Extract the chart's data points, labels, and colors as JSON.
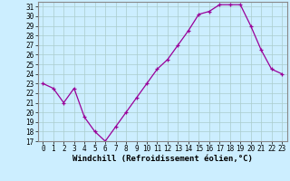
{
  "x": [
    0,
    1,
    2,
    3,
    4,
    5,
    6,
    7,
    8,
    9,
    10,
    11,
    12,
    13,
    14,
    15,
    16,
    17,
    18,
    19,
    20,
    21,
    22,
    23
  ],
  "y": [
    23.0,
    22.5,
    21.0,
    22.5,
    19.5,
    18.0,
    17.0,
    18.5,
    20.0,
    21.5,
    23.0,
    24.5,
    25.5,
    27.0,
    28.5,
    30.2,
    30.5,
    31.2,
    31.2,
    31.2,
    29.0,
    26.5,
    24.5,
    24.0
  ],
  "ylim": [
    17,
    31.5
  ],
  "yticks": [
    17,
    18,
    19,
    20,
    21,
    22,
    23,
    24,
    25,
    26,
    27,
    28,
    29,
    30,
    31
  ],
  "xticks": [
    0,
    1,
    2,
    3,
    4,
    5,
    6,
    7,
    8,
    9,
    10,
    11,
    12,
    13,
    14,
    15,
    16,
    17,
    18,
    19,
    20,
    21,
    22,
    23
  ],
  "xlabel": "Windchill (Refroidissement éolien,°C)",
  "line_color": "#990099",
  "marker": "+",
  "bg_color": "#cceeff",
  "grid_color": "#aacccc",
  "tick_fontsize": 5.5,
  "xlabel_fontsize": 6.5,
  "lw": 0.9
}
